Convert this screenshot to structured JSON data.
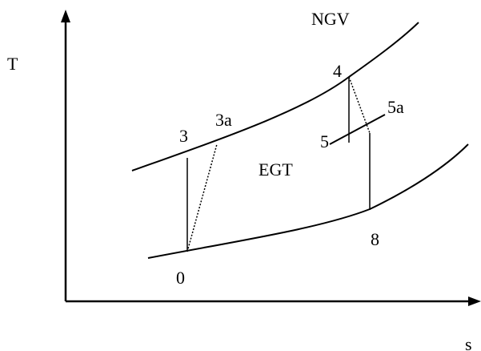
{
  "diagram": {
    "axes": {
      "y_label": "T",
      "x_label": "s"
    },
    "curve_labels": {
      "upper": "NGV",
      "middle": "EGT"
    },
    "state_points": {
      "p0": "0",
      "p3": "3",
      "p3a": "3a",
      "p4": "4",
      "p5": "5",
      "p5a": "5a",
      "p8": "8"
    }
  }
}
